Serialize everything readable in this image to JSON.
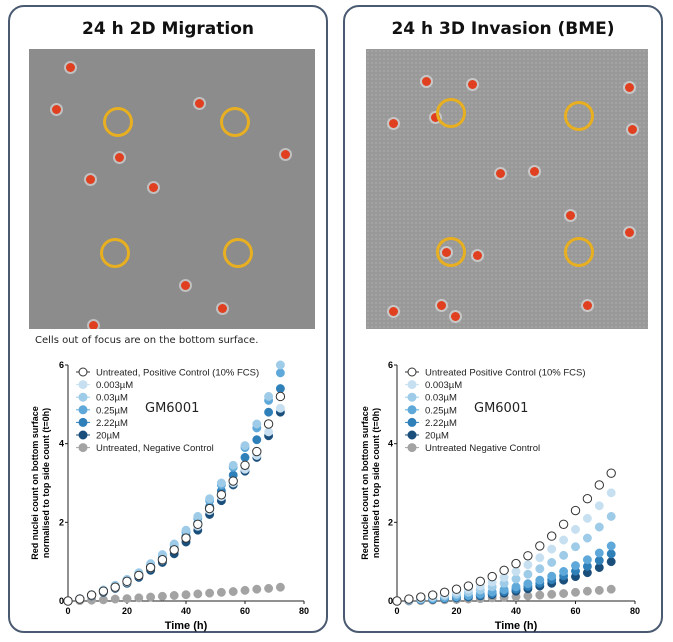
{
  "panels": [
    {
      "title": "24 h 2D Migration",
      "caption": "Cells out of focus are on the bottom surface."
    },
    {
      "title": "24 h 3D Invasion (BME)",
      "caption": ""
    }
  ],
  "colors": {
    "positive": "#ffffff",
    "c0003": "#c7e0f1",
    "c003": "#9dcbe8",
    "c025": "#5ea8da",
    "c222": "#2f7fb9",
    "c20": "#1b4f7b",
    "negative": "#a3a3a3",
    "panel_border": "#4a5a70",
    "ring": "#e8b020"
  },
  "chart_data": [
    {
      "type": "scatter",
      "annotation": "GM6001",
      "xlabel": "Time (h)",
      "ylabel": [
        "Red nuclei count on bottom surface",
        "normalised to top side count (t=0h)"
      ],
      "xlim": [
        0,
        80
      ],
      "ylim": [
        0,
        6
      ],
      "xticks": [
        "0",
        "20",
        "40",
        "60",
        "80"
      ],
      "yticks": [
        "0",
        "2",
        "4",
        "6"
      ],
      "legend_position": "top-left",
      "x": [
        0,
        4,
        8,
        12,
        16,
        20,
        24,
        28,
        32,
        36,
        40,
        44,
        48,
        52,
        56,
        60,
        64,
        68,
        72
      ],
      "series": [
        {
          "name": "Untreated, Positive Control (10% FCS)",
          "color": "positive",
          "open": true,
          "values": [
            0,
            0.05,
            0.15,
            0.25,
            0.35,
            0.5,
            0.65,
            0.85,
            1.05,
            1.3,
            1.6,
            1.95,
            2.35,
            2.7,
            3.05,
            3.45,
            3.8,
            4.5,
            5.2
          ]
        },
        {
          "name": "0.003µM",
          "color": "c0003",
          "values": [
            0,
            0.05,
            0.14,
            0.24,
            0.34,
            0.48,
            0.64,
            0.84,
            1.04,
            1.3,
            1.6,
            1.9,
            2.3,
            2.65,
            3.0,
            3.35,
            3.7,
            4.3,
            4.9
          ]
        },
        {
          "name": "0.03µM",
          "color": "c003",
          "values": [
            0,
            0.06,
            0.16,
            0.28,
            0.4,
            0.55,
            0.72,
            0.95,
            1.18,
            1.45,
            1.8,
            2.15,
            2.6,
            3.0,
            3.45,
            3.95,
            4.5,
            5.2,
            6.0
          ]
        },
        {
          "name": "0.25µM",
          "color": "c025",
          "values": [
            0,
            0.06,
            0.16,
            0.27,
            0.39,
            0.54,
            0.7,
            0.92,
            1.15,
            1.42,
            1.75,
            2.1,
            2.55,
            2.95,
            3.4,
            3.9,
            4.4,
            5.1,
            5.8
          ]
        },
        {
          "name": "2.22µM",
          "color": "c222",
          "values": [
            0,
            0.05,
            0.15,
            0.26,
            0.37,
            0.5,
            0.66,
            0.86,
            1.08,
            1.33,
            1.65,
            1.98,
            2.4,
            2.8,
            3.2,
            3.65,
            4.1,
            4.8,
            5.4
          ]
        },
        {
          "name": "20µM",
          "color": "c20",
          "values": [
            0,
            0.05,
            0.13,
            0.22,
            0.32,
            0.45,
            0.6,
            0.78,
            0.98,
            1.2,
            1.5,
            1.8,
            2.2,
            2.55,
            2.95,
            3.3,
            3.65,
            4.2,
            4.8
          ]
        },
        {
          "name": "Untreated, Negative Control",
          "color": "negative",
          "values": [
            0,
            0.01,
            0.02,
            0.03,
            0.05,
            0.06,
            0.08,
            0.1,
            0.12,
            0.14,
            0.16,
            0.18,
            0.2,
            0.22,
            0.24,
            0.27,
            0.3,
            0.32,
            0.35
          ]
        }
      ]
    },
    {
      "type": "scatter",
      "annotation": "GM6001",
      "xlabel": "Time (h)",
      "ylabel": [
        "Red nuclei count on bottom surface",
        "normalised to top side count (t=0h)"
      ],
      "xlim": [
        0,
        80
      ],
      "ylim": [
        0,
        6
      ],
      "xticks": [
        "0",
        "20",
        "40",
        "60",
        "80"
      ],
      "yticks": [
        "0",
        "2",
        "4",
        "6"
      ],
      "legend_position": "top-left",
      "x": [
        0,
        4,
        8,
        12,
        16,
        20,
        24,
        28,
        32,
        36,
        40,
        44,
        48,
        52,
        56,
        60,
        64,
        68,
        72
      ],
      "series": [
        {
          "name": "Untreated Positive Control (10% FCS)",
          "color": "positive",
          "open": true,
          "values": [
            0,
            0.05,
            0.1,
            0.15,
            0.22,
            0.3,
            0.38,
            0.5,
            0.62,
            0.78,
            0.95,
            1.15,
            1.4,
            1.65,
            1.95,
            2.3,
            2.6,
            2.95,
            3.25
          ]
        },
        {
          "name": "0.003µM",
          "color": "c0003",
          "values": [
            0,
            0.04,
            0.08,
            0.12,
            0.17,
            0.23,
            0.3,
            0.38,
            0.48,
            0.6,
            0.75,
            0.92,
            1.1,
            1.32,
            1.55,
            1.82,
            2.1,
            2.42,
            2.75
          ]
        },
        {
          "name": "0.03µM",
          "color": "c003",
          "values": [
            0,
            0.03,
            0.06,
            0.09,
            0.13,
            0.17,
            0.22,
            0.28,
            0.36,
            0.45,
            0.56,
            0.68,
            0.82,
            0.98,
            1.16,
            1.38,
            1.6,
            1.88,
            2.15
          ]
        },
        {
          "name": "0.25µM",
          "color": "c025",
          "values": [
            0,
            0.02,
            0.04,
            0.06,
            0.08,
            0.11,
            0.14,
            0.18,
            0.23,
            0.29,
            0.36,
            0.44,
            0.53,
            0.63,
            0.75,
            0.9,
            1.05,
            1.22,
            1.4
          ]
        },
        {
          "name": "2.22µM",
          "color": "c222",
          "values": [
            0,
            0.02,
            0.04,
            0.05,
            0.07,
            0.09,
            0.12,
            0.15,
            0.19,
            0.24,
            0.3,
            0.37,
            0.45,
            0.54,
            0.64,
            0.76,
            0.88,
            1.03,
            1.2
          ]
        },
        {
          "name": "20µM",
          "color": "c20",
          "values": [
            0,
            0.02,
            0.03,
            0.04,
            0.06,
            0.08,
            0.1,
            0.13,
            0.16,
            0.2,
            0.25,
            0.31,
            0.38,
            0.45,
            0.53,
            0.62,
            0.72,
            0.85,
            1.0
          ]
        },
        {
          "name": "Untreated Negative Control",
          "color": "negative",
          "values": [
            0,
            0.0,
            0.01,
            0.02,
            0.03,
            0.04,
            0.05,
            0.06,
            0.08,
            0.09,
            0.11,
            0.13,
            0.15,
            0.17,
            0.19,
            0.22,
            0.25,
            0.27,
            0.3
          ]
        }
      ]
    }
  ]
}
